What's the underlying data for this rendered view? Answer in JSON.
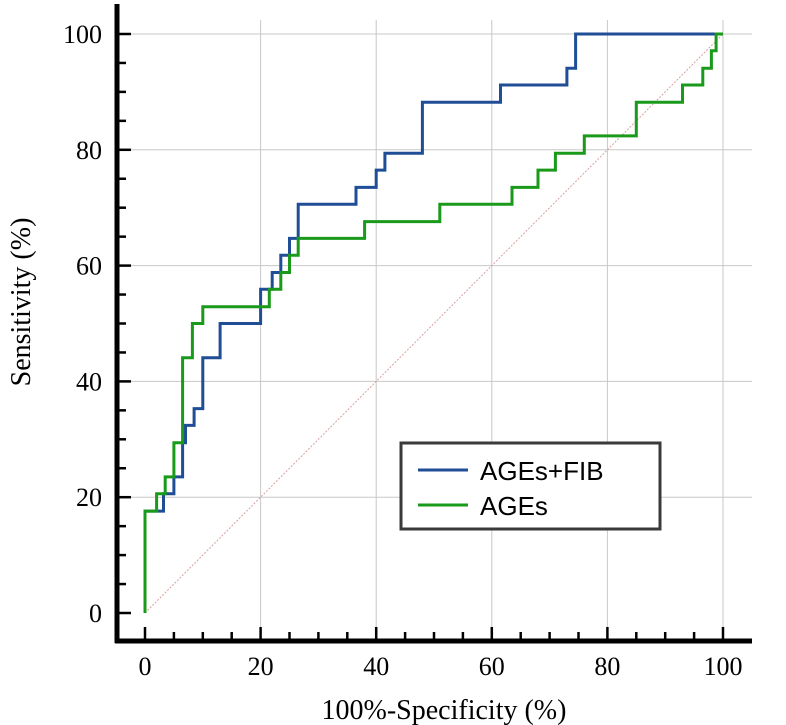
{
  "chart_data": {
    "type": "line",
    "title": "",
    "xlabel": "100%-Specificity (%)",
    "ylabel": "Sensitivity (%)",
    "xlim": [
      0,
      100
    ],
    "ylim": [
      0,
      100
    ],
    "xticks": [
      "0",
      "20",
      "40",
      "60",
      "80",
      "100"
    ],
    "yticks": [
      "0",
      "20",
      "40",
      "60",
      "80",
      "100"
    ],
    "grid": true,
    "legend_position": "lower-right",
    "series": [
      {
        "name": "AGEs+FIB",
        "color": "#1f4e96",
        "points": [
          [
            0,
            0
          ],
          [
            0,
            17.6
          ],
          [
            3.2,
            17.6
          ],
          [
            3.2,
            20.6
          ],
          [
            5,
            20.6
          ],
          [
            5,
            23.5
          ],
          [
            6.5,
            23.5
          ],
          [
            6.5,
            29.4
          ],
          [
            7,
            29.4
          ],
          [
            7,
            32.4
          ],
          [
            8.5,
            32.4
          ],
          [
            8.5,
            35.3
          ],
          [
            10,
            35.3
          ],
          [
            10,
            44.1
          ],
          [
            13,
            44.1
          ],
          [
            13,
            50
          ],
          [
            20,
            50
          ],
          [
            20,
            55.9
          ],
          [
            22,
            55.9
          ],
          [
            22,
            58.8
          ],
          [
            23.5,
            58.8
          ],
          [
            23.5,
            61.8
          ],
          [
            25,
            61.8
          ],
          [
            25,
            64.7
          ],
          [
            26.5,
            64.7
          ],
          [
            26.5,
            70.6
          ],
          [
            36.5,
            70.6
          ],
          [
            36.5,
            73.5
          ],
          [
            40,
            73.5
          ],
          [
            40,
            76.5
          ],
          [
            41.5,
            76.5
          ],
          [
            41.5,
            79.4
          ],
          [
            48,
            79.4
          ],
          [
            48,
            88.2
          ],
          [
            61.5,
            88.2
          ],
          [
            61.5,
            91.2
          ],
          [
            73,
            91.2
          ],
          [
            73,
            94.1
          ],
          [
            74.5,
            94.1
          ],
          [
            74.5,
            100
          ],
          [
            100,
            100
          ]
        ]
      },
      {
        "name": "AGEs",
        "color": "#1a9a1a",
        "points": [
          [
            0,
            0
          ],
          [
            0,
            17.6
          ],
          [
            2,
            17.6
          ],
          [
            2,
            20.6
          ],
          [
            3.5,
            20.6
          ],
          [
            3.5,
            23.5
          ],
          [
            5,
            23.5
          ],
          [
            5,
            29.4
          ],
          [
            6.5,
            29.4
          ],
          [
            6.5,
            44.1
          ],
          [
            8.2,
            44.1
          ],
          [
            8.2,
            50
          ],
          [
            10,
            50
          ],
          [
            10,
            52.9
          ],
          [
            21.5,
            52.9
          ],
          [
            21.5,
            55.9
          ],
          [
            23.5,
            55.9
          ],
          [
            23.5,
            58.8
          ],
          [
            25,
            58.8
          ],
          [
            25,
            61.8
          ],
          [
            26.5,
            61.8
          ],
          [
            26.5,
            64.7
          ],
          [
            38,
            64.7
          ],
          [
            38,
            67.6
          ],
          [
            51,
            67.6
          ],
          [
            51,
            70.6
          ],
          [
            63.5,
            70.6
          ],
          [
            63.5,
            73.5
          ],
          [
            68,
            73.5
          ],
          [
            68,
            76.5
          ],
          [
            71,
            76.5
          ],
          [
            71,
            79.4
          ],
          [
            76,
            79.4
          ],
          [
            76,
            82.4
          ],
          [
            85,
            82.4
          ],
          [
            85,
            88.2
          ],
          [
            93,
            88.2
          ],
          [
            93,
            91.2
          ],
          [
            96.5,
            91.2
          ],
          [
            96.5,
            94.1
          ],
          [
            98,
            94.1
          ],
          [
            98,
            97.1
          ],
          [
            98.8,
            97.1
          ],
          [
            98.8,
            100
          ],
          [
            100,
            100
          ]
        ]
      },
      {
        "name": "",
        "color": "#d9a0a0",
        "points": [
          [
            0,
            0
          ],
          [
            100,
            100
          ]
        ]
      }
    ]
  }
}
